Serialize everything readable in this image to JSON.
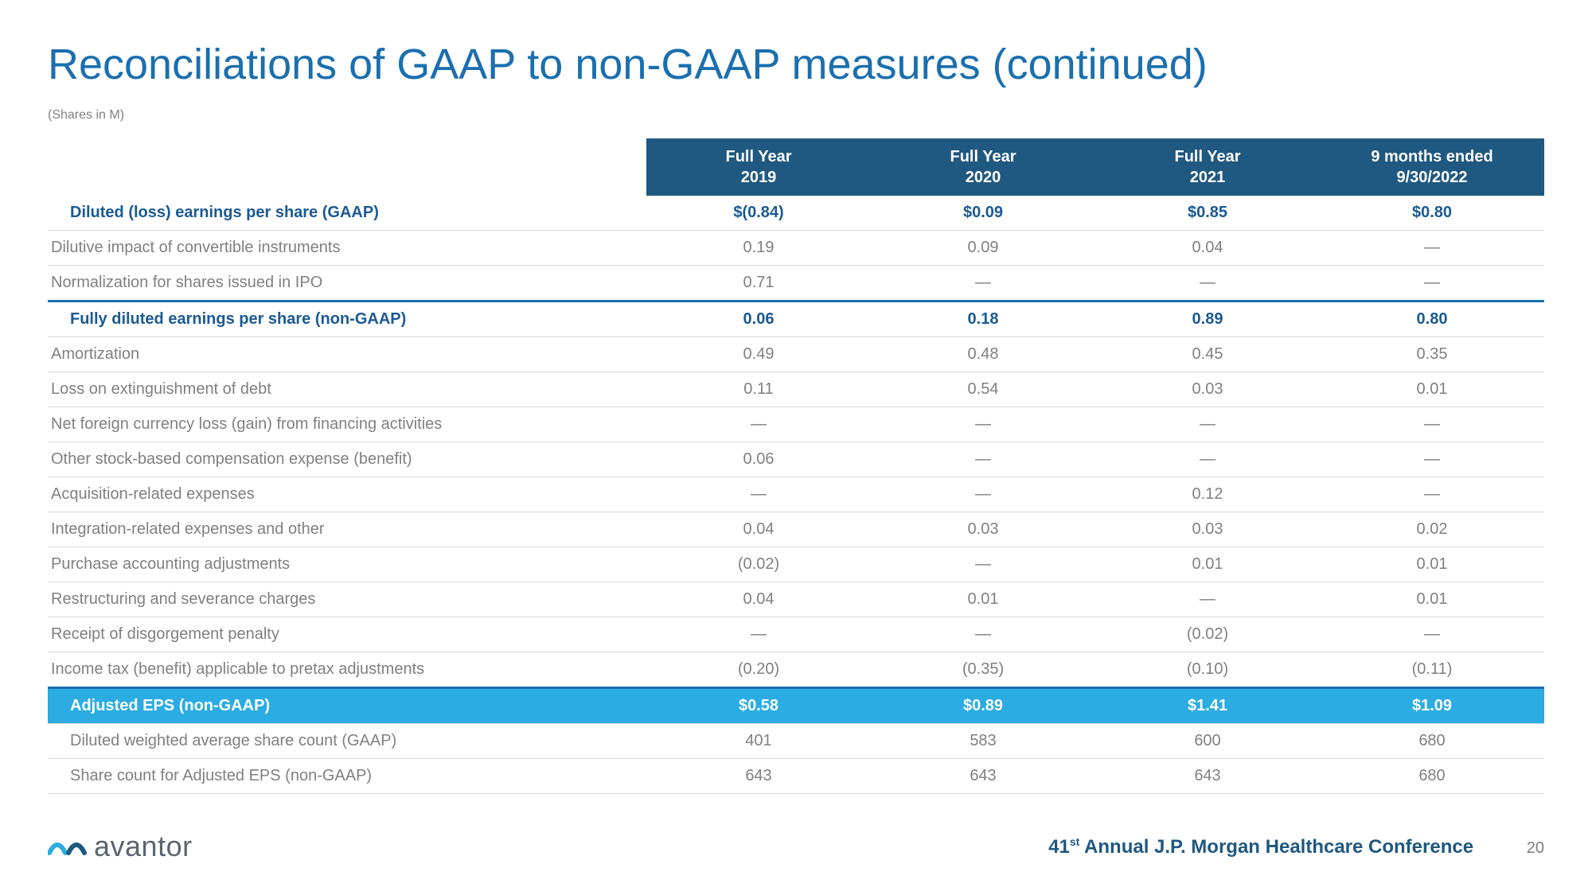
{
  "title": "Reconciliations of GAAP to non-GAAP measures (continued)",
  "subtitle": "(Shares in M)",
  "columns": [
    "Full Year\n2019",
    "Full Year\n2020",
    "Full Year\n2021",
    "9 months ended\n9/30/2022"
  ],
  "rows": [
    {
      "label": "Diluted (loss) earnings per share (GAAP)",
      "vals": [
        "$(0.84)",
        "$0.09",
        "$0.85",
        "$0.80"
      ],
      "cls": "bold-blue"
    },
    {
      "label": "Dilutive impact of convertible instruments",
      "vals": [
        "0.19",
        "0.09",
        "0.04",
        "—"
      ]
    },
    {
      "label": "Normalization for shares issued in IPO",
      "vals": [
        "0.71",
        "—",
        "—",
        "—"
      ]
    },
    {
      "label": "Fully diluted earnings per share (non-GAAP)",
      "vals": [
        "0.06",
        "0.18",
        "0.89",
        "0.80"
      ],
      "cls": "bold-blue thick-top"
    },
    {
      "label": "Amortization",
      "vals": [
        "0.49",
        "0.48",
        "0.45",
        "0.35"
      ]
    },
    {
      "label": "Loss on extinguishment of debt",
      "vals": [
        "0.11",
        "0.54",
        "0.03",
        "0.01"
      ]
    },
    {
      "label": "Net foreign currency loss (gain) from financing activities",
      "vals": [
        "—",
        "—",
        "—",
        "—"
      ]
    },
    {
      "label": "Other stock-based compensation expense (benefit)",
      "vals": [
        "0.06",
        "—",
        "—",
        "—"
      ]
    },
    {
      "label": "Acquisition-related expenses",
      "vals": [
        "—",
        "—",
        "0.12",
        "—"
      ]
    },
    {
      "label": "Integration-related expenses and other",
      "vals": [
        "0.04",
        "0.03",
        "0.03",
        "0.02"
      ]
    },
    {
      "label": "Purchase accounting adjustments",
      "vals": [
        "(0.02)",
        "—",
        "0.01",
        "0.01"
      ]
    },
    {
      "label": "Restructuring and severance charges",
      "vals": [
        "0.04",
        "0.01",
        "—",
        "0.01"
      ]
    },
    {
      "label": "Receipt of disgorgement penalty",
      "vals": [
        "—",
        "—",
        "(0.02)",
        "—"
      ]
    },
    {
      "label": "Income tax (benefit) applicable to pretax adjustments",
      "vals": [
        "(0.20)",
        "(0.35)",
        "(0.10)",
        "(0.11)"
      ]
    },
    {
      "label": "Adjusted EPS (non-GAAP)",
      "vals": [
        "$0.58",
        "$0.89",
        "$1.41",
        "$1.09"
      ],
      "cls": "highlight thick-top"
    },
    {
      "label": "Diluted weighted average share count (GAAP)",
      "vals": [
        "401",
        "583",
        "600",
        "680"
      ],
      "cls": "indent"
    },
    {
      "label": "Share count for Adjusted EPS (non-GAAP)",
      "vals": [
        "643",
        "643",
        "643",
        "680"
      ],
      "cls": "indent"
    }
  ],
  "logo_text": "avantor",
  "footer_conf_num": "41",
  "footer_conf_sup": "st",
  "footer_conf_rest": " Annual J.P. Morgan Healthcare Conference",
  "page_number": "20",
  "colors": {
    "title": "#1a6faf",
    "header_bg": "#1f5880",
    "highlight_bg": "#2bace2",
    "text_gray": "#808080",
    "border": "#d9d9d9",
    "bold_blue": "#1a5a94"
  }
}
